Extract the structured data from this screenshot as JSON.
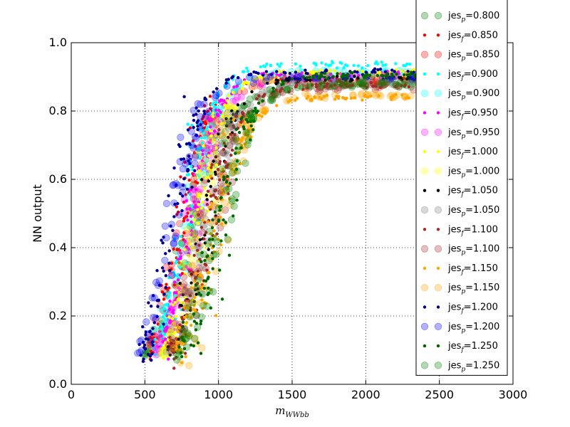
{
  "chart_data": {
    "type": "scatter",
    "xlabel": "m_WWbb",
    "xlabel_main": "m",
    "xlabel_sub": "WWbb",
    "ylabel": "NN output",
    "xlim": [
      0,
      3000
    ],
    "ylim": [
      0,
      1.0
    ],
    "xticks": [
      0,
      500,
      1000,
      1500,
      2000,
      2500,
      3000
    ],
    "xtick_labels": [
      "0",
      "500",
      "1000",
      "1500",
      "2000",
      "2500",
      "3000"
    ],
    "yticks": [
      0.0,
      0.2,
      0.4,
      0.6,
      0.8,
      1.0
    ],
    "ytick_labels": [
      "0.0",
      "0.2",
      "0.4",
      "0.6",
      "0.8",
      "1.0"
    ],
    "grid": true,
    "legend_position": "upper-right, extending above the plot",
    "series": [
      {
        "name": "jes_p=0.800",
        "label_main": "jes",
        "label_sub": "p",
        "label_val": "=0.800",
        "color": "#008000",
        "marker": "large-circle",
        "x_mid": 800,
        "spread": 140,
        "ymax": 0.875
      },
      {
        "name": "jes_f=0.850",
        "label_main": "jes",
        "label_sub": "f",
        "label_val": "=0.850",
        "color": "#ff0000",
        "marker": "small-dot",
        "x_mid": 740,
        "spread": 95,
        "ymax": 0.895
      },
      {
        "name": "jes_p=0.850",
        "label_main": "jes",
        "label_sub": "p",
        "label_val": "=0.850",
        "color": "#ff0000",
        "marker": "large-circle",
        "x_mid": 760,
        "spread": 110,
        "ymax": 0.885
      },
      {
        "name": "jes_f=0.900",
        "label_main": "jes",
        "label_sub": "f",
        "label_val": "=0.900",
        "color": "#00ffff",
        "marker": "small-dot",
        "x_mid": 780,
        "spread": 100,
        "ymax": 0.935
      },
      {
        "name": "jes_p=0.900",
        "label_main": "jes",
        "label_sub": "p",
        "label_val": "=0.900",
        "color": "#00ffff",
        "marker": "large-circle",
        "x_mid": 790,
        "spread": 115,
        "ymax": 0.915
      },
      {
        "name": "jes_f=0.950",
        "label_main": "jes",
        "label_sub": "f",
        "label_val": "=0.950",
        "color": "#ff00ff",
        "marker": "small-dot",
        "x_mid": 810,
        "spread": 100,
        "ymax": 0.91
      },
      {
        "name": "jes_p=0.950",
        "label_main": "jes",
        "label_sub": "p",
        "label_val": "=0.950",
        "color": "#ff00ff",
        "marker": "large-circle",
        "x_mid": 820,
        "spread": 115,
        "ymax": 0.9
      },
      {
        "name": "jes_f=1.000",
        "label_main": "jes",
        "label_sub": "f",
        "label_val": "=1.000",
        "color": "#ffff00",
        "marker": "small-dot",
        "x_mid": 850,
        "spread": 105,
        "ymax": 0.915
      },
      {
        "name": "jes_p=1.000",
        "label_main": "jes",
        "label_sub": "p",
        "label_val": "=1.000",
        "color": "#ffff00",
        "marker": "large-circle",
        "x_mid": 860,
        "spread": 115,
        "ymax": 0.905
      },
      {
        "name": "jes_f=1.050",
        "label_main": "jes",
        "label_sub": "f",
        "label_val": "=1.050",
        "color": "#000000",
        "marker": "small-dot",
        "x_mid": 890,
        "spread": 110,
        "ymax": 0.895
      },
      {
        "name": "jes_p=1.050",
        "label_main": "jes",
        "label_sub": "p",
        "label_val": "=1.050",
        "color": "#808080",
        "marker": "large-circle",
        "x_mid": 895,
        "spread": 120,
        "ymax": 0.885
      },
      {
        "name": "jes_f=1.100",
        "label_main": "jes",
        "label_sub": "f",
        "label_val": "=1.100",
        "color": "#a52a2a",
        "marker": "small-dot",
        "x_mid": 920,
        "spread": 115,
        "ymax": 0.875
      },
      {
        "name": "jes_p=1.100",
        "label_main": "jes",
        "label_sub": "p",
        "label_val": "=1.100",
        "color": "#a52a2a",
        "marker": "large-circle",
        "x_mid": 925,
        "spread": 125,
        "ymax": 0.87
      },
      {
        "name": "jes_f=1.150",
        "label_main": "jes",
        "label_sub": "f",
        "label_val": "=1.150",
        "color": "#ffa500",
        "marker": "small-dot",
        "x_mid": 960,
        "spread": 120,
        "ymax": 0.84
      },
      {
        "name": "jes_p=1.150",
        "label_main": "jes",
        "label_sub": "p",
        "label_val": "=1.150",
        "color": "#ffa500",
        "marker": "large-circle",
        "x_mid": 950,
        "spread": 125,
        "ymax": 0.845
      },
      {
        "name": "jes_f=1.200",
        "label_main": "jes",
        "label_sub": "f",
        "label_val": "=1.200",
        "color": "#00008b",
        "marker": "small-dot",
        "x_mid": 690,
        "spread": 105,
        "ymax": 0.915
      },
      {
        "name": "jes_p=1.200",
        "label_main": "jes",
        "label_sub": "p",
        "label_val": "=1.200",
        "color": "#0000ff",
        "marker": "large-circle",
        "x_mid": 680,
        "spread": 110,
        "ymax": 0.9
      },
      {
        "name": "jes_f=1.250",
        "label_main": "jes",
        "label_sub": "f",
        "label_val": "=1.250",
        "color": "#006400",
        "marker": "small-dot",
        "x_mid": 1000,
        "spread": 125,
        "ymax": 0.905
      },
      {
        "name": "jes_p=1.250",
        "label_main": "jes",
        "label_sub": "p",
        "label_val": "=1.250",
        "color": "#008000",
        "marker": "large-circle",
        "x_mid": 985,
        "spread": 125,
        "ymax": 0.88
      }
    ]
  }
}
